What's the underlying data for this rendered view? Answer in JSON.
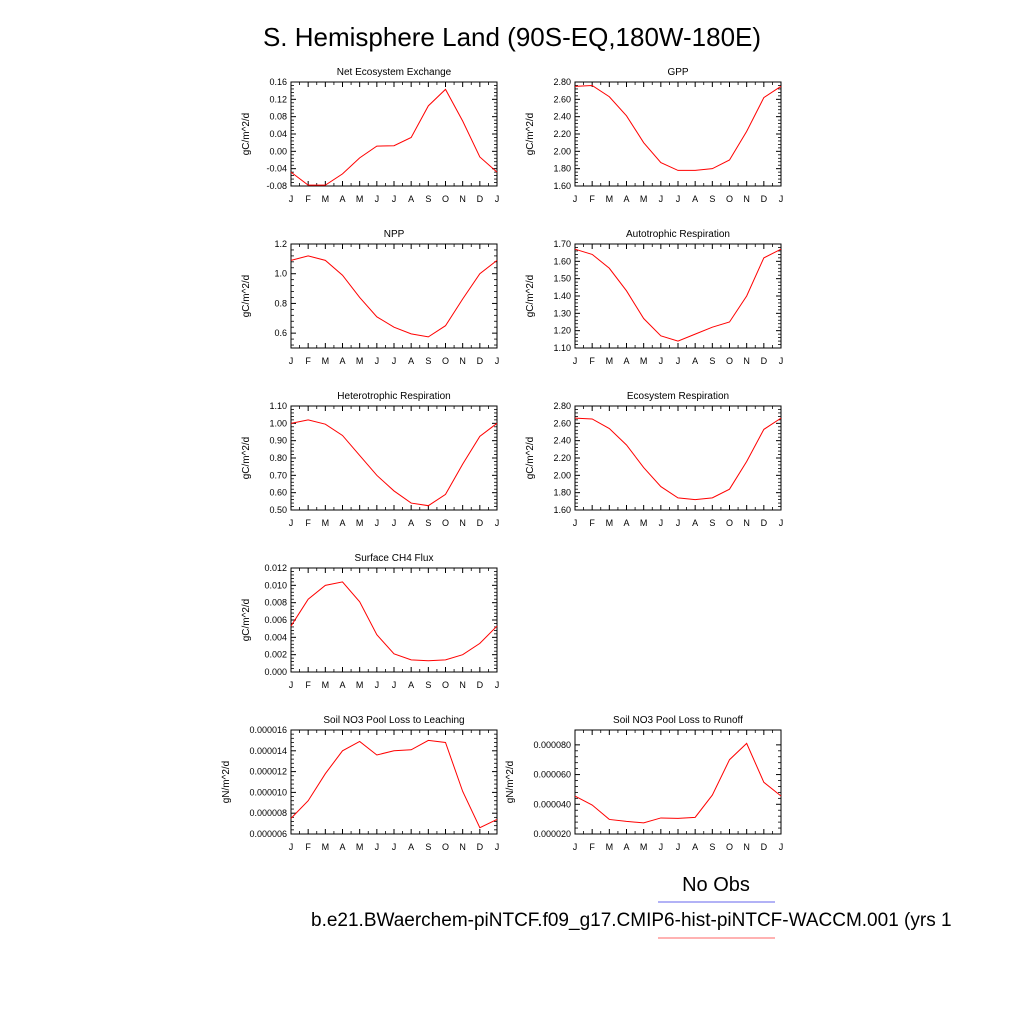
{
  "title": "S. Hemisphere Land (90S-EQ,180W-180E)",
  "legend": {
    "obs_label": "No Obs",
    "obs_color": "#6666ee",
    "case_label": "b.e21.BWaerchem-piNTCF.f09_g17.CMIP6-hist-piNTCF-WACCM.001 (yrs 1",
    "case_color": "#ff6666"
  },
  "line_color": "#ff0000",
  "chart_data": [
    {
      "type": "line",
      "title": "Net Ecosystem Exchange",
      "ylabel": "gC/m^2/d",
      "x": [
        "J",
        "F",
        "M",
        "A",
        "M",
        "J",
        "J",
        "A",
        "S",
        "O",
        "N",
        "D",
        "J"
      ],
      "ylim": [
        -0.08,
        0.16
      ],
      "yticks": [
        "0.16",
        "0.12",
        "0.08",
        "0.04",
        "0.00",
        "-0.04",
        "-0.08"
      ],
      "grid": false,
      "series": [
        {
          "values": [
            -0.048,
            -0.078,
            -0.078,
            -0.052,
            -0.015,
            0.012,
            0.013,
            0.032,
            0.105,
            0.143,
            0.07,
            -0.013,
            -0.048
          ]
        }
      ]
    },
    {
      "type": "line",
      "title": "GPP",
      "ylabel": "gC/m^2/d",
      "x": [
        "J",
        "F",
        "M",
        "A",
        "M",
        "J",
        "J",
        "A",
        "S",
        "O",
        "N",
        "D",
        "J"
      ],
      "ylim": [
        1.6,
        2.8
      ],
      "yticks": [
        "2.80",
        "2.60",
        "2.40",
        "2.20",
        "2.00",
        "1.80",
        "1.60"
      ],
      "grid": false,
      "series": [
        {
          "values": [
            2.75,
            2.76,
            2.63,
            2.41,
            2.1,
            1.87,
            1.78,
            1.78,
            1.8,
            1.9,
            2.23,
            2.62,
            2.75
          ]
        }
      ]
    },
    {
      "type": "line",
      "title": "NPP",
      "ylabel": "gC/m^2/d",
      "x": [
        "J",
        "F",
        "M",
        "A",
        "M",
        "J",
        "J",
        "A",
        "S",
        "O",
        "N",
        "D",
        "J"
      ],
      "ylim": [
        0.5,
        1.2
      ],
      "yticks": [
        "1.2",
        "1.0",
        "0.8",
        "0.6"
      ],
      "grid": false,
      "series": [
        {
          "values": [
            1.09,
            1.12,
            1.09,
            0.99,
            0.84,
            0.71,
            0.64,
            0.595,
            0.575,
            0.65,
            0.83,
            1.0,
            1.09
          ]
        }
      ]
    },
    {
      "type": "line",
      "title": "Autotrophic Respiration",
      "ylabel": "gC/m^2/d",
      "x": [
        "J",
        "F",
        "M",
        "A",
        "M",
        "J",
        "J",
        "A",
        "S",
        "O",
        "N",
        "D",
        "J"
      ],
      "ylim": [
        1.1,
        1.7
      ],
      "yticks": [
        "1.70",
        "1.60",
        "1.50",
        "1.40",
        "1.30",
        "1.20",
        "1.10"
      ],
      "grid": false,
      "series": [
        {
          "values": [
            1.67,
            1.64,
            1.56,
            1.43,
            1.27,
            1.17,
            1.14,
            1.18,
            1.22,
            1.25,
            1.4,
            1.62,
            1.67
          ]
        }
      ]
    },
    {
      "type": "line",
      "title": "Heterotrophic Respiration",
      "ylabel": "gC/m^2/d",
      "x": [
        "J",
        "F",
        "M",
        "A",
        "M",
        "J",
        "J",
        "A",
        "S",
        "O",
        "N",
        "D",
        "J"
      ],
      "ylim": [
        0.5,
        1.1
      ],
      "yticks": [
        "1.10",
        "1.00",
        "0.90",
        "0.80",
        "0.70",
        "0.60",
        "0.50"
      ],
      "grid": false,
      "series": [
        {
          "values": [
            1.0,
            1.02,
            0.995,
            0.93,
            0.815,
            0.7,
            0.61,
            0.54,
            0.525,
            0.59,
            0.765,
            0.925,
            1.0
          ]
        }
      ]
    },
    {
      "type": "line",
      "title": "Ecosystem Respiration",
      "ylabel": "gC/m^2/d",
      "x": [
        "J",
        "F",
        "M",
        "A",
        "M",
        "J",
        "J",
        "A",
        "S",
        "O",
        "N",
        "D",
        "J"
      ],
      "ylim": [
        1.6,
        2.8
      ],
      "yticks": [
        "2.80",
        "2.60",
        "2.40",
        "2.20",
        "2.00",
        "1.80",
        "1.60"
      ],
      "grid": false,
      "series": [
        {
          "values": [
            2.66,
            2.65,
            2.54,
            2.35,
            2.09,
            1.87,
            1.74,
            1.72,
            1.74,
            1.84,
            2.16,
            2.53,
            2.66
          ]
        }
      ]
    },
    {
      "type": "line",
      "title": "Surface CH4 Flux",
      "ylabel": "gC/m^2/d",
      "x": [
        "J",
        "F",
        "M",
        "A",
        "M",
        "J",
        "J",
        "A",
        "S",
        "O",
        "N",
        "D",
        "J"
      ],
      "ylim": [
        0.0,
        0.012
      ],
      "yticks": [
        "0.012",
        "0.010",
        "0.008",
        "0.006",
        "0.004",
        "0.002",
        "0.000"
      ],
      "grid": false,
      "series": [
        {
          "values": [
            0.0053,
            0.0084,
            0.01,
            0.0104,
            0.0081,
            0.0043,
            0.0021,
            0.0014,
            0.0013,
            0.0014,
            0.002,
            0.0033,
            0.0053
          ]
        }
      ]
    },
    {
      "type": "line",
      "title": "Soil NO3 Pool Loss to Leaching",
      "ylabel": "gN/m^2/d",
      "x": [
        "J",
        "F",
        "M",
        "A",
        "M",
        "J",
        "J",
        "A",
        "S",
        "O",
        "N",
        "D",
        "J"
      ],
      "ylim": [
        6e-06,
        1.6e-05
      ],
      "yticks": [
        "0.000016",
        "0.000014",
        "0.000012",
        "0.000010",
        "0.000008",
        "0.000006"
      ],
      "grid": false,
      "series": [
        {
          "values": [
            7.5e-06,
            9.2e-06,
            1.18e-05,
            1.4e-05,
            1.49e-05,
            1.36e-05,
            1.4e-05,
            1.41e-05,
            1.5e-05,
            1.48e-05,
            1.01e-05,
            6.6e-06,
            7.4e-06
          ]
        }
      ]
    },
    {
      "type": "line",
      "title": "Soil NO3 Pool Loss to Runoff",
      "ylabel": "gN/m^2/d",
      "x": [
        "J",
        "F",
        "M",
        "A",
        "M",
        "J",
        "J",
        "A",
        "S",
        "O",
        "N",
        "D",
        "J"
      ],
      "ylim": [
        2e-05,
        9e-05
      ],
      "yticks": [
        "0.000080",
        "0.000060",
        "0.000040",
        "0.000020"
      ],
      "grid": false,
      "series": [
        {
          "values": [
            4.55e-05,
            3.95e-05,
            2.98e-05,
            2.85e-05,
            2.75e-05,
            3.08e-05,
            3.05e-05,
            3.12e-05,
            4.62e-05,
            7e-05,
            8.1e-05,
            5.48e-05,
            4.56e-05
          ]
        }
      ]
    }
  ]
}
